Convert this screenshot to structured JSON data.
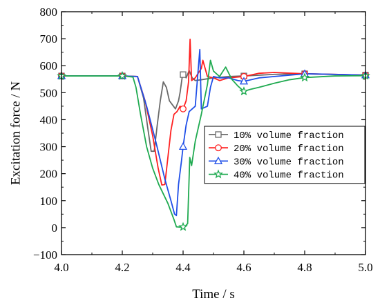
{
  "chart_data": {
    "type": "line",
    "xlabel": "Time / s",
    "ylabel": "Excitation force / N",
    "xlim": [
      4.0,
      5.0
    ],
    "ylim": [
      -100,
      800
    ],
    "xticks": [
      4.0,
      4.2,
      4.4,
      4.6,
      4.8,
      5.0
    ],
    "yticks": [
      -100,
      0,
      100,
      200,
      300,
      400,
      500,
      600,
      700,
      800
    ],
    "xtick_labels": [
      "4.0",
      "4.2",
      "4.4",
      "4.6",
      "4.8",
      "5.0"
    ],
    "ytick_labels": [
      "−100",
      "0",
      "100",
      "200",
      "300",
      "400",
      "500",
      "600",
      "700",
      "800"
    ],
    "grid": false,
    "legend_position": "center-right",
    "series": [
      {
        "name": "10% volume fraction",
        "color": "#696969",
        "marker": "square",
        "markers_at": [
          4.0,
          4.2,
          4.4,
          4.6,
          4.8,
          5.0
        ],
        "points": [
          [
            4.0,
            562
          ],
          [
            4.2,
            562
          ],
          [
            4.25,
            560
          ],
          [
            4.27,
            480
          ],
          [
            4.285,
            360
          ],
          [
            4.295,
            283
          ],
          [
            4.305,
            283
          ],
          [
            4.315,
            380
          ],
          [
            4.325,
            470
          ],
          [
            4.335,
            540
          ],
          [
            4.345,
            520
          ],
          [
            4.355,
            470
          ],
          [
            4.365,
            455
          ],
          [
            4.375,
            440
          ],
          [
            4.385,
            470
          ],
          [
            4.39,
            500
          ],
          [
            4.398,
            565
          ],
          [
            4.405,
            572
          ],
          [
            4.41,
            555
          ],
          [
            4.42,
            582
          ],
          [
            4.43,
            555
          ],
          [
            4.44,
            545
          ],
          [
            4.46,
            548
          ],
          [
            4.5,
            555
          ],
          [
            4.55,
            560
          ],
          [
            4.6,
            562
          ],
          [
            4.7,
            568
          ],
          [
            4.8,
            570
          ],
          [
            5.0,
            565
          ]
        ]
      },
      {
        "name": "20% volume fraction",
        "color": "#ff2020",
        "marker": "circle",
        "markers_at": [
          4.0,
          4.2,
          4.4,
          4.6,
          4.8,
          5.0
        ],
        "points": [
          [
            4.0,
            562
          ],
          [
            4.2,
            562
          ],
          [
            4.25,
            560
          ],
          [
            4.275,
            470
          ],
          [
            4.3,
            340
          ],
          [
            4.318,
            220
          ],
          [
            4.33,
            158
          ],
          [
            4.34,
            160
          ],
          [
            4.35,
            260
          ],
          [
            4.36,
            360
          ],
          [
            4.37,
            420
          ],
          [
            4.38,
            430
          ],
          [
            4.39,
            450
          ],
          [
            4.4,
            440
          ],
          [
            4.41,
            470
          ],
          [
            4.418,
            540
          ],
          [
            4.423,
            698
          ],
          [
            4.428,
            545
          ],
          [
            4.44,
            555
          ],
          [
            4.46,
            590
          ],
          [
            4.465,
            620
          ],
          [
            4.48,
            560
          ],
          [
            4.5,
            555
          ],
          [
            4.52,
            545
          ],
          [
            4.55,
            555
          ],
          [
            4.6,
            560
          ],
          [
            4.65,
            572
          ],
          [
            4.7,
            575
          ],
          [
            4.8,
            570
          ],
          [
            4.9,
            568
          ],
          [
            5.0,
            565
          ]
        ]
      },
      {
        "name": "30% volume fraction",
        "color": "#1f4fe8",
        "marker": "triangle",
        "markers_at": [
          4.0,
          4.2,
          4.4,
          4.6,
          4.8,
          5.0
        ],
        "points": [
          [
            4.0,
            562
          ],
          [
            4.2,
            562
          ],
          [
            4.25,
            560
          ],
          [
            4.28,
            450
          ],
          [
            4.31,
            320
          ],
          [
            4.34,
            180
          ],
          [
            4.36,
            100
          ],
          [
            4.372,
            50
          ],
          [
            4.378,
            45
          ],
          [
            4.385,
            160
          ],
          [
            4.395,
            250
          ],
          [
            4.4,
            300
          ],
          [
            4.41,
            380
          ],
          [
            4.42,
            430
          ],
          [
            4.43,
            440
          ],
          [
            4.44,
            450
          ],
          [
            4.455,
            660
          ],
          [
            4.46,
            440
          ],
          [
            4.48,
            450
          ],
          [
            4.49,
            520
          ],
          [
            4.5,
            560
          ],
          [
            4.52,
            555
          ],
          [
            4.55,
            555
          ],
          [
            4.58,
            545
          ],
          [
            4.6,
            542
          ],
          [
            4.65,
            555
          ],
          [
            4.7,
            560
          ],
          [
            4.8,
            570
          ],
          [
            4.9,
            568
          ],
          [
            5.0,
            565
          ]
        ]
      },
      {
        "name": "40% volume fraction",
        "color": "#1faa50",
        "marker": "star",
        "markers_at": [
          4.0,
          4.2,
          4.4,
          4.6,
          4.8,
          5.0
        ],
        "points": [
          [
            4.0,
            562
          ],
          [
            4.2,
            562
          ],
          [
            4.235,
            558
          ],
          [
            4.245,
            520
          ],
          [
            4.26,
            420
          ],
          [
            4.28,
            300
          ],
          [
            4.3,
            220
          ],
          [
            4.32,
            160
          ],
          [
            4.35,
            90
          ],
          [
            4.37,
            30
          ],
          [
            4.378,
            3
          ],
          [
            4.39,
            2
          ],
          [
            4.405,
            3
          ],
          [
            4.415,
            15
          ],
          [
            4.422,
            260
          ],
          [
            4.428,
            230
          ],
          [
            4.44,
            320
          ],
          [
            4.46,
            420
          ],
          [
            4.48,
            530
          ],
          [
            4.49,
            620
          ],
          [
            4.5,
            580
          ],
          [
            4.52,
            560
          ],
          [
            4.54,
            595
          ],
          [
            4.56,
            550
          ],
          [
            4.58,
            525
          ],
          [
            4.6,
            505
          ],
          [
            4.62,
            512
          ],
          [
            4.65,
            520
          ],
          [
            4.7,
            535
          ],
          [
            4.75,
            548
          ],
          [
            4.8,
            556
          ],
          [
            4.9,
            562
          ],
          [
            5.0,
            563
          ]
        ]
      }
    ]
  }
}
